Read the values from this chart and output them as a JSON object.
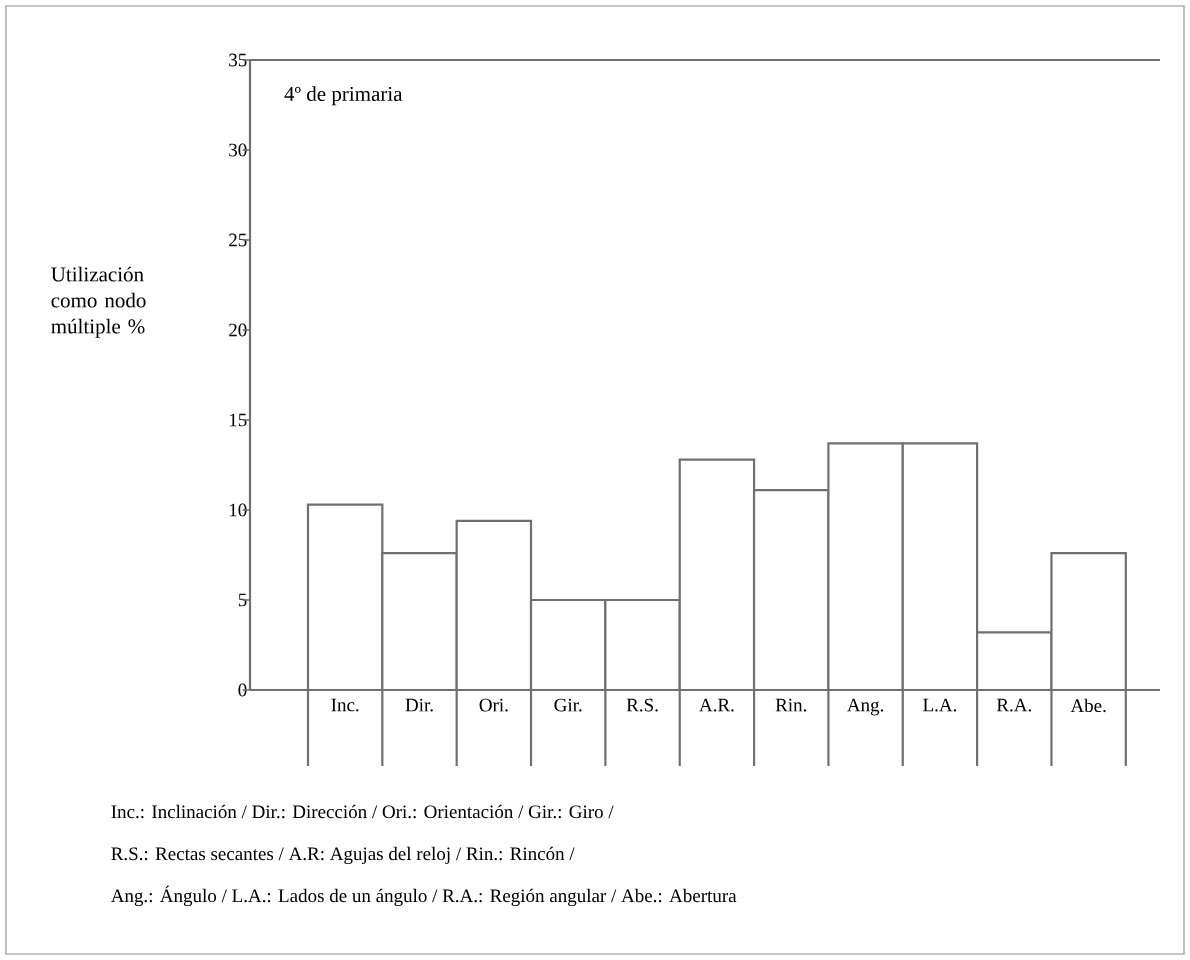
{
  "chart_data": {
    "type": "bar",
    "title": "4º de primaria",
    "ylabel": "Utilización como nodo múltiple %",
    "categories": [
      "Inc.",
      "Dir.",
      "Ori.",
      "Gir.",
      "R.S.",
      "A.R.",
      "Rin.",
      "Ang.",
      "L.A.",
      "R.A.",
      "Abe."
    ],
    "values": [
      10.3,
      7.6,
      9.4,
      5,
      5,
      12.8,
      11.1,
      13.7,
      13.7,
      3.2,
      7.6
    ],
    "color": "#ffffff",
    "ylim": [
      0,
      35
    ],
    "yticks": [
      0,
      5,
      10,
      15,
      20,
      25,
      30,
      35
    ],
    "annotations": [
      "Inc.: Inclinación / Dir.: Dirección / Ori.: Orientación / Gir.: Giro /",
      "R.S.: Rectas secantes / A.R: Agujas del reloj / Rin.: Rincón /",
      "Ang.: Ángulo / L.A.: Lados de un ángulo / R.A.: Región angular / Abe.: Abertura"
    ]
  }
}
